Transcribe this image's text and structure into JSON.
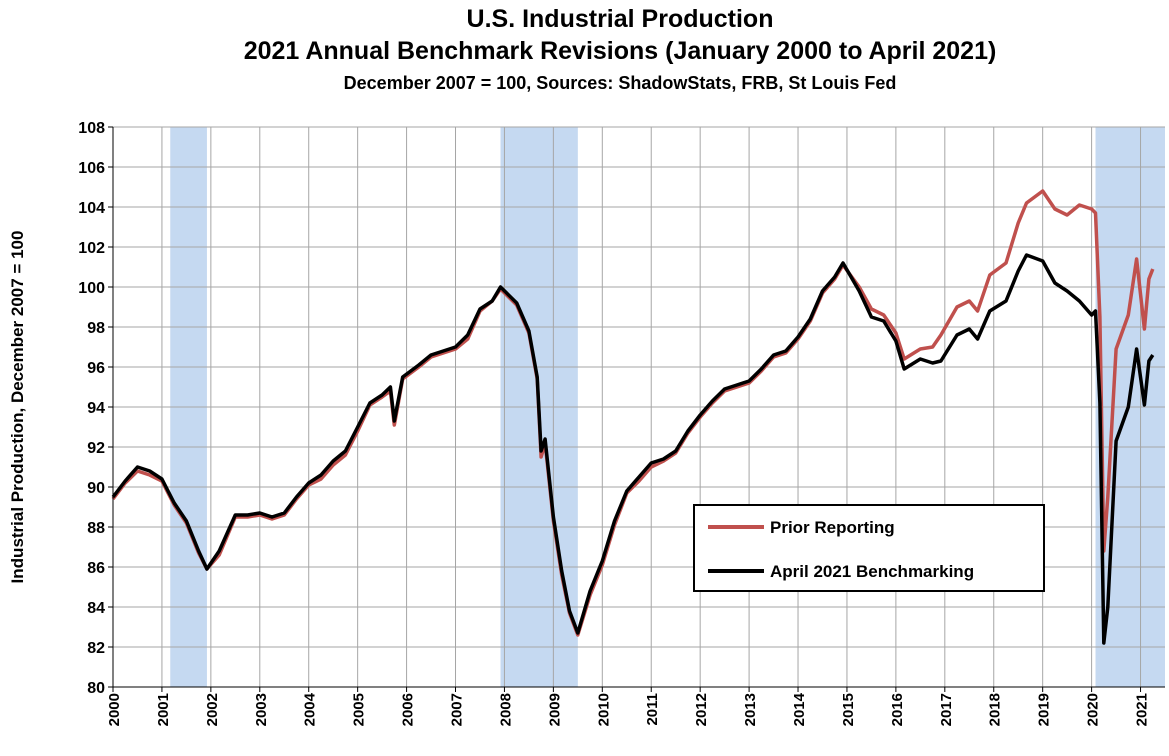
{
  "chart_data": {
    "type": "line",
    "title": "U.S. Industrial Production",
    "subtitle": "2021 Annual Benchmark Revisions (January 2000 to April 2021)",
    "note": "December 2007 = 100, Sources: ShadowStats, FRB, St Louis Fed",
    "y_label": "Industrial Production, December 2007 = 100",
    "x": [
      2000,
      2000.25,
      2000.5,
      2000.75,
      2001,
      2001.25,
      2001.5,
      2001.75,
      2001.92,
      2002.17,
      2002.5,
      2002.75,
      2003,
      2003.25,
      2003.5,
      2003.75,
      2004,
      2004.25,
      2004.5,
      2004.75,
      2005,
      2005.25,
      2005.5,
      2005.67,
      2005.75,
      2005.92,
      2006.25,
      2006.5,
      2006.75,
      2007,
      2007.25,
      2007.5,
      2007.75,
      2007.92,
      2008.25,
      2008.5,
      2008.67,
      2008.75,
      2008.83,
      2009,
      2009.17,
      2009.33,
      2009.5,
      2009.75,
      2010,
      2010.25,
      2010.5,
      2010.75,
      2011,
      2011.25,
      2011.5,
      2011.75,
      2012,
      2012.25,
      2012.5,
      2012.75,
      2013,
      2013.25,
      2013.5,
      2013.75,
      2014,
      2014.25,
      2014.5,
      2014.75,
      2014.92,
      2015.25,
      2015.5,
      2015.75,
      2016,
      2016.17,
      2016.5,
      2016.75,
      2016.92,
      2017.25,
      2017.5,
      2017.67,
      2017.92,
      2018.25,
      2018.5,
      2018.67,
      2019,
      2019.25,
      2019.5,
      2019.75,
      2020,
      2020.08,
      2020.17,
      2020.25,
      2020.33,
      2020.5,
      2020.75,
      2020.92,
      2021.08,
      2021.17,
      2021.25
    ],
    "series": [
      {
        "name": "Prior Reporting",
        "color": "#c0504d",
        "values": [
          89.4,
          90.2,
          90.8,
          90.6,
          90.3,
          89.1,
          88.2,
          86.7,
          85.9,
          86.6,
          88.5,
          88.5,
          88.6,
          88.4,
          88.6,
          89.4,
          90.1,
          90.4,
          91.1,
          91.6,
          92.8,
          94.1,
          94.5,
          94.8,
          93.1,
          95.4,
          96.0,
          96.5,
          96.7,
          96.9,
          97.4,
          98.8,
          99.3,
          99.9,
          99.1,
          97.7,
          95.4,
          91.5,
          92.2,
          88.3,
          85.6,
          83.7,
          82.6,
          84.6,
          86.1,
          88.1,
          89.7,
          90.3,
          91.0,
          91.3,
          91.7,
          92.7,
          93.5,
          94.2,
          94.8,
          95.0,
          95.2,
          95.8,
          96.5,
          96.7,
          97.4,
          98.3,
          99.7,
          100.4,
          101.1,
          100.0,
          98.9,
          98.6,
          97.7,
          96.4,
          96.9,
          97.0,
          97.6,
          99.0,
          99.3,
          98.8,
          100.6,
          101.2,
          103.2,
          104.2,
          104.8,
          103.9,
          103.6,
          104.1,
          103.9,
          103.7,
          98.5,
          86.8,
          89.5,
          96.9,
          98.6,
          101.4,
          97.9,
          100.4,
          100.9
        ]
      },
      {
        "name": "April 2021 Benchmarking",
        "color": "#000000",
        "values": [
          89.5,
          90.3,
          91.0,
          90.8,
          90.4,
          89.2,
          88.3,
          86.8,
          85.9,
          86.8,
          88.6,
          88.6,
          88.7,
          88.5,
          88.7,
          89.5,
          90.2,
          90.6,
          91.3,
          91.8,
          93.0,
          94.2,
          94.6,
          95.0,
          93.3,
          95.5,
          96.1,
          96.6,
          96.8,
          97.0,
          97.6,
          98.9,
          99.3,
          100.0,
          99.2,
          97.8,
          95.5,
          91.8,
          92.4,
          88.5,
          85.8,
          83.8,
          82.7,
          84.8,
          86.3,
          88.3,
          89.8,
          90.5,
          91.2,
          91.4,
          91.8,
          92.8,
          93.6,
          94.3,
          94.9,
          95.1,
          95.3,
          95.9,
          96.6,
          96.8,
          97.5,
          98.4,
          99.8,
          100.5,
          101.2,
          99.8,
          98.5,
          98.3,
          97.3,
          95.9,
          96.4,
          96.2,
          96.3,
          97.6,
          97.9,
          97.4,
          98.8,
          99.3,
          100.8,
          101.6,
          101.3,
          100.2,
          99.8,
          99.3,
          98.6,
          98.8,
          94.2,
          82.2,
          84.0,
          92.3,
          94.0,
          96.9,
          94.1,
          96.3,
          96.6
        ]
      }
    ],
    "shaded_periods": [
      [
        2001.17,
        2001.92
      ],
      [
        2007.92,
        2009.5
      ],
      [
        2020.08,
        2021.5
      ]
    ],
    "shade_color": "#c5d9f1",
    "xlim": [
      2000,
      2021.5
    ],
    "xticks": [
      2000,
      2001,
      2002,
      2003,
      2004,
      2005,
      2006,
      2007,
      2008,
      2009,
      2010,
      2011,
      2012,
      2013,
      2014,
      2015,
      2016,
      2017,
      2018,
      2019,
      2020,
      2021
    ],
    "ylim": [
      80,
      108
    ],
    "yticks": [
      80,
      82,
      84,
      86,
      88,
      90,
      92,
      94,
      96,
      98,
      100,
      102,
      104,
      106,
      108
    ],
    "grid": true,
    "legend": "lower right"
  }
}
